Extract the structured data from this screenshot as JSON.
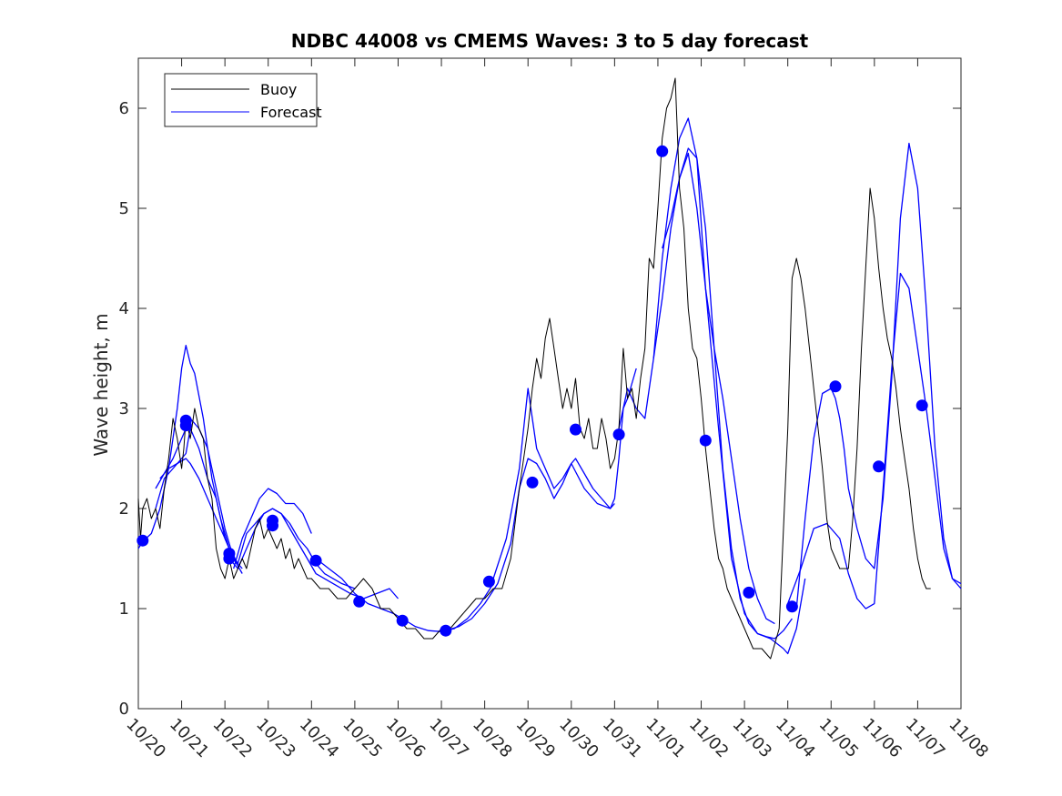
{
  "chart_data": {
    "type": "line",
    "title": "NDBC 44008 vs CMEMS Waves: 3 to 5 day forecast",
    "xlabel": "",
    "ylabel": "Wave height, m",
    "xlim": [
      0,
      19
    ],
    "ylim": [
      0,
      6.5
    ],
    "x_tick_labels": [
      "10/20",
      "10/21",
      "10/22",
      "10/23",
      "10/24",
      "10/25",
      "10/26",
      "10/27",
      "10/28",
      "10/29",
      "10/30",
      "10/31",
      "11/01",
      "11/02",
      "11/03",
      "11/04",
      "11/05",
      "11/06",
      "11/07",
      "11/08"
    ],
    "y_ticks": [
      0,
      1,
      2,
      3,
      4,
      5,
      6
    ],
    "legend": {
      "position": "top-left",
      "entries": [
        "Buoy",
        "Forecast"
      ]
    },
    "colors": {
      "buoy": "#000000",
      "forecast": "#0000ff",
      "axis": "#262626"
    },
    "series": [
      {
        "name": "Buoy",
        "x": [
          0,
          0.05,
          0.1,
          0.2,
          0.3,
          0.4,
          0.5,
          0.6,
          0.7,
          0.8,
          0.9,
          1.0,
          1.05,
          1.1,
          1.2,
          1.3,
          1.4,
          1.5,
          1.6,
          1.7,
          1.8,
          1.9,
          2.0,
          2.1,
          2.2,
          2.3,
          2.4,
          2.5,
          2.6,
          2.7,
          2.8,
          2.9,
          3.0,
          3.1,
          3.2,
          3.3,
          3.4,
          3.5,
          3.6,
          3.7,
          3.8,
          3.9,
          4.0,
          4.2,
          4.4,
          4.6,
          4.8,
          5.0,
          5.2,
          5.4,
          5.6,
          5.8,
          6.0,
          6.2,
          6.4,
          6.6,
          6.8,
          7.0,
          7.2,
          7.4,
          7.6,
          7.8,
          8.0,
          8.2,
          8.4,
          8.6,
          8.8,
          9.0,
          9.1,
          9.2,
          9.3,
          9.4,
          9.5,
          9.6,
          9.7,
          9.8,
          9.9,
          10.0,
          10.1,
          10.2,
          10.3,
          10.4,
          10.5,
          10.6,
          10.7,
          10.8,
          10.9,
          11.0,
          11.1,
          11.2,
          11.3,
          11.4,
          11.5,
          11.6,
          11.7,
          11.8,
          11.9,
          12.0,
          12.1,
          12.2,
          12.3,
          12.4,
          12.5,
          12.6,
          12.7,
          12.8,
          12.9,
          13.0,
          13.1,
          13.2,
          13.3,
          13.4,
          13.5,
          13.6,
          13.8,
          14.0,
          14.2,
          14.4,
          14.6,
          14.8,
          15.0,
          15.1,
          15.2,
          15.3,
          15.4,
          15.5,
          15.6,
          15.7,
          15.8,
          15.9,
          16.0,
          16.1,
          16.2,
          16.3,
          16.4,
          16.5,
          16.6,
          16.7,
          16.8,
          16.9,
          17.0,
          17.1,
          17.2,
          17.3,
          17.4,
          17.5,
          17.6,
          17.7,
          17.8,
          17.9,
          18.0,
          18.1,
          18.2,
          18.3
        ],
        "values": [
          2.1,
          1.7,
          2.0,
          2.1,
          1.9,
          2.0,
          1.8,
          2.2,
          2.5,
          2.9,
          2.7,
          2.4,
          2.6,
          2.9,
          2.7,
          3.0,
          2.8,
          2.7,
          2.3,
          2.1,
          1.6,
          1.4,
          1.3,
          1.5,
          1.3,
          1.4,
          1.5,
          1.4,
          1.6,
          1.8,
          1.9,
          1.7,
          1.8,
          1.7,
          1.6,
          1.7,
          1.5,
          1.6,
          1.4,
          1.5,
          1.4,
          1.3,
          1.3,
          1.2,
          1.2,
          1.1,
          1.1,
          1.2,
          1.3,
          1.2,
          1.0,
          1.0,
          0.9,
          0.8,
          0.8,
          0.7,
          0.7,
          0.8,
          0.8,
          0.9,
          1.0,
          1.1,
          1.1,
          1.2,
          1.2,
          1.5,
          2.2,
          2.8,
          3.2,
          3.5,
          3.3,
          3.7,
          3.9,
          3.6,
          3.3,
          3.0,
          3.2,
          3.0,
          3.3,
          2.8,
          2.7,
          2.9,
          2.6,
          2.6,
          2.9,
          2.7,
          2.4,
          2.5,
          2.8,
          3.6,
          3.1,
          3.2,
          2.9,
          3.3,
          3.6,
          4.5,
          4.4,
          5.0,
          5.7,
          6.0,
          6.1,
          6.3,
          5.2,
          4.8,
          4.0,
          3.6,
          3.5,
          3.1,
          2.6,
          2.2,
          1.8,
          1.5,
          1.4,
          1.2,
          1.0,
          0.8,
          0.6,
          0.6,
          0.5,
          0.8,
          2.8,
          4.3,
          4.5,
          4.3,
          4.0,
          3.6,
          3.2,
          2.8,
          2.4,
          1.9,
          1.6,
          1.5,
          1.4,
          1.4,
          1.4,
          1.9,
          2.6,
          3.6,
          4.4,
          5.2,
          4.9,
          4.4,
          4.0,
          3.7,
          3.5,
          3.2,
          2.8,
          2.5,
          2.2,
          1.8,
          1.5,
          1.3,
          1.2,
          1.2
        ]
      },
      {
        "name": "Forecast",
        "segments": [
          {
            "x": [
              0,
              0.1,
              0.3,
              0.5,
              0.7,
              0.9,
              1.0,
              1.1,
              1.2,
              1.3,
              1.5,
              1.7,
              1.9,
              2.1,
              2.3
            ],
            "values": [
              1.6,
              1.67,
              1.75,
              2.0,
              2.4,
              3.0,
              3.4,
              3.63,
              3.45,
              3.35,
              2.9,
              2.3,
              1.9,
              1.6,
              1.45
            ]
          },
          {
            "x": [
              0.4,
              0.6,
              0.8,
              1.0,
              1.1,
              1.2,
              1.4,
              1.6,
              1.8,
              2.0,
              2.2,
              2.4
            ],
            "values": [
              2.0,
              2.3,
              2.4,
              2.5,
              2.55,
              2.8,
              2.6,
              2.3,
              2.1,
              1.7,
              1.5,
              1.4
            ]
          },
          {
            "x": [
              0.4,
              0.6,
              0.8,
              1.0,
              1.2,
              1.4,
              1.6,
              1.8,
              2.0,
              2.2,
              2.4
            ],
            "values": [
              2.2,
              2.35,
              2.5,
              2.7,
              2.9,
              2.8,
              2.6,
              2.2,
              1.8,
              1.5,
              1.35
            ]
          },
          {
            "x": [
              0.5,
              0.7,
              0.9,
              1.1,
              1.2,
              1.4,
              1.6,
              1.8,
              2.0,
              2.2
            ],
            "values": [
              2.3,
              2.4,
              2.45,
              2.5,
              2.45,
              2.3,
              2.1,
              1.9,
              1.7,
              1.5
            ]
          },
          {
            "x": [
              2.1,
              2.3,
              2.5,
              2.7,
              2.9,
              3.1,
              3.3,
              3.5,
              3.7,
              3.9,
              4.1,
              4.3,
              4.5,
              4.7,
              5.0
            ],
            "values": [
              1.5,
              1.4,
              1.6,
              1.8,
              1.95,
              2.0,
              1.95,
              1.85,
              1.7,
              1.6,
              1.45,
              1.35,
              1.3,
              1.25,
              1.2
            ]
          },
          {
            "x": [
              2.2,
              2.4,
              2.6,
              2.8,
              3.0,
              3.2,
              3.4,
              3.6,
              3.8,
              4.0
            ],
            "values": [
              1.4,
              1.7,
              1.9,
              2.1,
              2.2,
              2.15,
              2.05,
              2.05,
              1.95,
              1.75
            ]
          },
          {
            "x": [
              2.3,
              2.5,
              2.7,
              2.9,
              3.1,
              3.3,
              3.5,
              3.7,
              3.9,
              4.1,
              4.3,
              4.5,
              4.7,
              4.9,
              5.2,
              5.5,
              5.8,
              6.0
            ],
            "values": [
              1.45,
              1.75,
              1.85,
              1.95,
              2.0,
              1.95,
              1.8,
              1.65,
              1.5,
              1.35,
              1.3,
              1.25,
              1.2,
              1.15,
              1.1,
              1.15,
              1.2,
              1.1
            ]
          },
          {
            "x": [
              4.1,
              4.4,
              4.7,
              5.0,
              5.3,
              5.6,
              5.9,
              6.1,
              6.4,
              6.7,
              7.0,
              7.3,
              7.6,
              7.9,
              8.2
            ],
            "values": [
              1.5,
              1.4,
              1.3,
              1.15,
              1.05,
              1.0,
              0.95,
              0.9,
              0.82,
              0.78,
              0.77,
              0.8,
              0.9,
              1.05,
              1.25
            ]
          },
          {
            "x": [
              7.1,
              7.4,
              7.7,
              8.0,
              8.3,
              8.6,
              8.8,
              9.0,
              9.2,
              9.4,
              9.6,
              9.8,
              10.0,
              10.3,
              10.6,
              10.9,
              11.0
            ],
            "values": [
              0.78,
              0.82,
              0.9,
              1.05,
              1.25,
              1.65,
              2.2,
              2.5,
              2.45,
              2.3,
              2.1,
              2.25,
              2.45,
              2.2,
              2.05,
              2.0,
              2.05
            ]
          },
          {
            "x": [
              8.2,
              8.5,
              8.8,
              9.0,
              9.2,
              9.4,
              9.6,
              9.8,
              10.0,
              10.1,
              10.3,
              10.5,
              10.7,
              10.9,
              11.0,
              11.1,
              11.2,
              11.3,
              11.5
            ],
            "values": [
              1.3,
              1.7,
              2.4,
              3.2,
              2.6,
              2.4,
              2.2,
              2.3,
              2.45,
              2.5,
              2.35,
              2.2,
              2.1,
              2.0,
              2.1,
              2.5,
              3.0,
              3.1,
              3.4
            ]
          },
          {
            "x": [
              11.1,
              11.3,
              11.5,
              11.7,
              11.9,
              12.1,
              12.3,
              12.5,
              12.7,
              12.9,
              13.1,
              13.4,
              13.7,
              14.0,
              14.3,
              14.6,
              14.9,
              15.0,
              15.2,
              15.4
            ],
            "values": [
              2.8,
              3.2,
              3.0,
              2.9,
              3.5,
              4.5,
              5.2,
              5.7,
              5.9,
              5.5,
              4.2,
              2.8,
              1.5,
              0.95,
              0.75,
              0.7,
              0.6,
              0.55,
              0.8,
              1.3
            ]
          },
          {
            "x": [
              12.1,
              12.3,
              12.5,
              12.7,
              12.9,
              13.1,
              13.3,
              13.5,
              13.7,
              13.9,
              14.1,
              14.3,
              14.5,
              14.7,
              14.9,
              15.1
            ],
            "values": [
              4.6,
              4.9,
              5.3,
              5.6,
              5.5,
              4.8,
              3.6,
              2.4,
              1.6,
              1.1,
              0.85,
              0.75,
              0.72,
              0.7,
              0.78,
              0.9
            ]
          },
          {
            "x": [
              11.9,
              12.1,
              12.3,
              12.5,
              12.7,
              12.9,
              13.1,
              13.3,
              13.5,
              13.7,
              13.9,
              14.1,
              14.3,
              14.5,
              14.7
            ],
            "values": [
              3.5,
              4.1,
              4.8,
              5.3,
              5.55,
              5.0,
              4.2,
              3.6,
              3.1,
              2.5,
              1.9,
              1.4,
              1.1,
              0.9,
              0.85
            ]
          },
          {
            "x": [
              15.2,
              15.4,
              15.6,
              15.8,
              16.0,
              16.1,
              16.2,
              16.3,
              16.4,
              16.6,
              16.8,
              17.0,
              17.2,
              17.4,
              17.6,
              17.8,
              18.0,
              18.2,
              18.4,
              18.6,
              18.8,
              19.0
            ],
            "values": [
              1.0,
              1.9,
              2.7,
              3.15,
              3.2,
              3.1,
              2.9,
              2.6,
              2.2,
              1.8,
              1.5,
              1.4,
              2.1,
              3.3,
              4.9,
              5.65,
              5.2,
              4.0,
              2.6,
              1.7,
              1.3,
              1.2
            ]
          },
          {
            "x": [
              15.0,
              15.3,
              15.6,
              15.9,
              16.2,
              16.4,
              16.6,
              16.8,
              17.0,
              17.2,
              17.4,
              17.6,
              17.8,
              18.0,
              18.2,
              18.4,
              18.6,
              18.8,
              19.0
            ],
            "values": [
              1.05,
              1.4,
              1.8,
              1.85,
              1.7,
              1.35,
              1.1,
              1.0,
              1.05,
              2.2,
              3.4,
              4.35,
              4.2,
              3.6,
              3.0,
              2.3,
              1.6,
              1.3,
              1.25
            ]
          }
        ],
        "markers": {
          "x": [
            0.1,
            1.1,
            1.1,
            2.1,
            2.1,
            3.1,
            3.1,
            4.1,
            5.1,
            6.1,
            7.1,
            8.1,
            9.1,
            10.1,
            11.1,
            12.1,
            13.1,
            14.1,
            15.1,
            16.1,
            17.1,
            18.1
          ],
          "values": [
            1.68,
            2.88,
            2.83,
            1.55,
            1.5,
            1.88,
            1.83,
            1.48,
            1.07,
            0.88,
            0.78,
            1.27,
            2.26,
            2.79,
            2.74,
            5.57,
            2.68,
            1.16,
            1.02,
            3.22,
            2.42,
            3.03
          ]
        }
      }
    ]
  }
}
